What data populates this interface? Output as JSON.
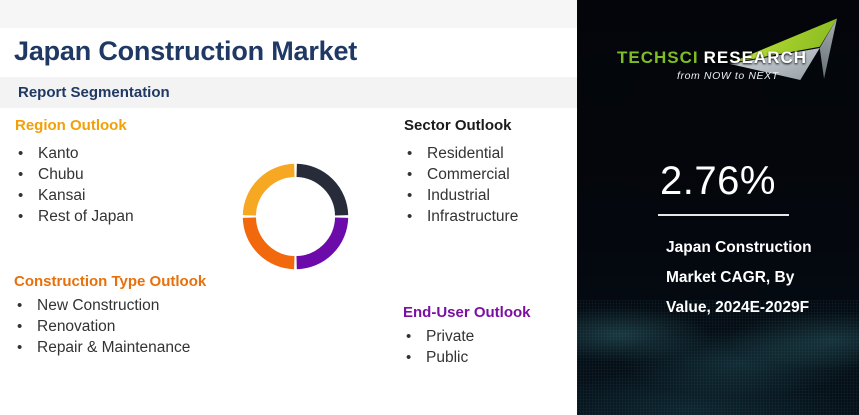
{
  "header": {
    "title": "Japan Construction Market",
    "subtitle": "Report Segmentation"
  },
  "sections": {
    "region": {
      "title": "Region Outlook",
      "accent_color": "#F2A007",
      "items": [
        "Kanto",
        "Chubu",
        "Kansai",
        "Rest of Japan"
      ]
    },
    "construction_type": {
      "title": "Construction Type Outlook",
      "accent_color": "#E8700A",
      "items": [
        "New Construction",
        "Renovation",
        "Repair & Maintenance"
      ]
    },
    "sector": {
      "title": "Sector Outlook",
      "accent_color": "#1A1A1A",
      "items": [
        "Residential",
        "Commercial",
        "Industrial",
        "Infrastructure"
      ]
    },
    "end_user": {
      "title": "End-User Outlook",
      "accent_color": "#7B0FA3",
      "items": [
        "Private",
        "Public"
      ]
    }
  },
  "chart_data": {
    "type": "pie",
    "subtype": "donut",
    "title": "Report segmentation donut (decorative, four equal unlabeled segments)",
    "segments": [
      {
        "label": "top-right",
        "value": 25,
        "color": "#282C3A"
      },
      {
        "label": "bottom-right",
        "value": 25,
        "color": "#6C0BA9"
      },
      {
        "label": "bottom-left",
        "value": 25,
        "color": "#F2690D"
      },
      {
        "label": "top-left",
        "value": 25,
        "color": "#F7A823"
      }
    ],
    "stat": {
      "value": "2.76%",
      "label": "Japan Construction Market CAGR, By Value, 2024E-2029F"
    }
  },
  "panel": {
    "background_color": "#04070D",
    "logo": {
      "brand_primary": "TechSci",
      "brand_secondary": "Research",
      "tagline": "from NOW to NEXT",
      "brand_color": "#7DBE26"
    },
    "cagr_value": "2.76%",
    "caption_lines": [
      "Japan Construction",
      "Market CAGR, By",
      "Value, 2024E-2029F"
    ]
  }
}
